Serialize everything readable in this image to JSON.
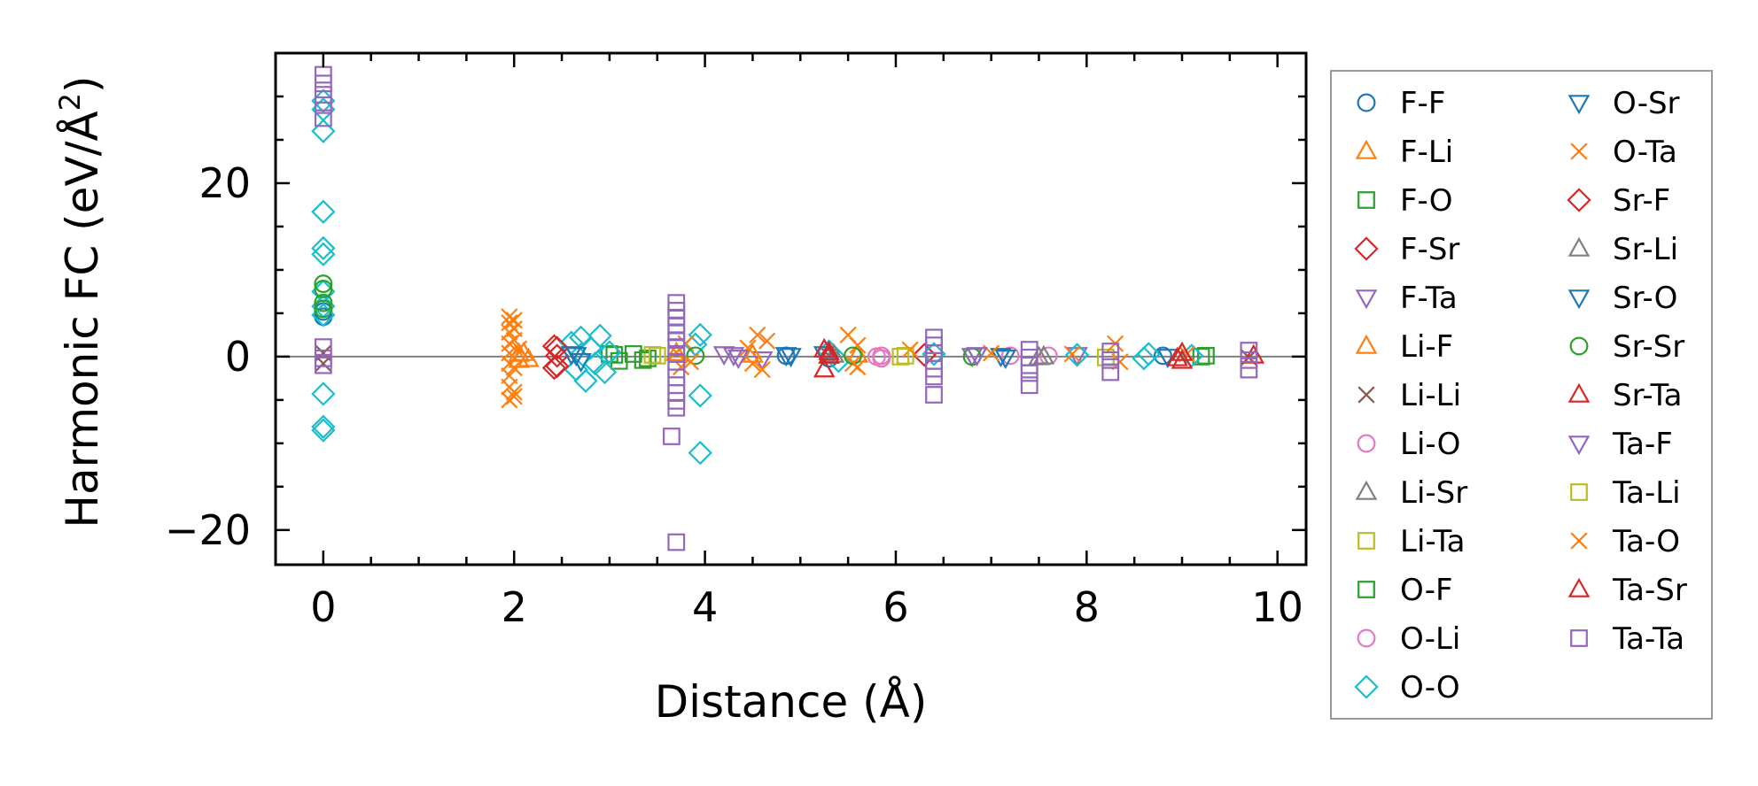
{
  "chart_data": {
    "type": "scatter",
    "xlabel": "Distance (Å)",
    "ylabel_main": "Harmonic FC (eV/Å",
    "ylabel_sup": "2",
    "ylabel_close": ")",
    "xlim": [
      -0.5,
      10.3
    ],
    "ylim": [
      -24,
      35
    ],
    "xticks": [
      0,
      2,
      4,
      6,
      8,
      10
    ],
    "xtick_labels": [
      "0",
      "2",
      "4",
      "6",
      "8",
      "10"
    ],
    "yticks": [
      -20,
      0,
      20
    ],
    "ytick_labels": [
      "−20",
      "0",
      "20"
    ],
    "reference_line_y": 0,
    "legend_position": "outside-right",
    "series": [
      {
        "name": "F-F",
        "marker": "circle",
        "color": "#1f77b4",
        "points": [
          [
            0,
            5.2
          ],
          [
            0,
            4.6
          ],
          [
            4.85,
            0.1
          ],
          [
            5.3,
            -0.2
          ],
          [
            8.8,
            0.1
          ]
        ]
      },
      {
        "name": "F-Li",
        "marker": "triangle-up",
        "color": "#ff7f0e",
        "points": [
          [
            2.05,
            0.3
          ],
          [
            2.05,
            -0.4
          ],
          [
            3.7,
            0.4
          ],
          [
            5.6,
            0.2
          ]
        ]
      },
      {
        "name": "F-O",
        "marker": "square",
        "color": "#2ca02c",
        "points": [
          [
            3.05,
            0.2
          ],
          [
            3.1,
            -0.5
          ],
          [
            3.25,
            0.3
          ],
          [
            3.4,
            -0.2
          ],
          [
            9.25,
            0.1
          ]
        ]
      },
      {
        "name": "F-Sr",
        "marker": "diamond",
        "color": "#d62728",
        "points": [
          [
            2.42,
            1.2
          ],
          [
            2.42,
            -1.3
          ],
          [
            2.45,
            0.1
          ],
          [
            6.3,
            0.2
          ]
        ]
      },
      {
        "name": "F-Ta",
        "marker": "triangle-down",
        "color": "#9467bd",
        "points": [
          [
            4.3,
            0.2
          ],
          [
            4.6,
            -0.3
          ],
          [
            6.8,
            0.1
          ],
          [
            7.9,
            0.2
          ]
        ]
      },
      {
        "name": "Li-F",
        "marker": "triangle-up",
        "color": "#ff7f0e",
        "points": [
          [
            2.1,
            0.4
          ],
          [
            2.15,
            -0.3
          ],
          [
            4.5,
            0.2
          ]
        ]
      },
      {
        "name": "Li-Li",
        "marker": "x",
        "color": "#8c564b",
        "points": [
          [
            0,
            -0.8
          ],
          [
            0,
            0.4
          ],
          [
            5.3,
            0.1
          ],
          [
            9.7,
            -0.1
          ]
        ]
      },
      {
        "name": "Li-O",
        "marker": "circle",
        "color": "#e377c2",
        "points": [
          [
            5.85,
            0.1
          ],
          [
            5.85,
            -0.2
          ],
          [
            7.2,
            0.1
          ]
        ]
      },
      {
        "name": "Li-Sr",
        "marker": "triangle-up",
        "color": "#7f7f7f",
        "points": [
          [
            5.3,
            0.1
          ],
          [
            7.5,
            -0.1
          ]
        ]
      },
      {
        "name": "Li-Ta",
        "marker": "square",
        "color": "#bcbd22",
        "points": [
          [
            3.45,
            0.2
          ],
          [
            6.1,
            0.1
          ],
          [
            8.2,
            -0.1
          ]
        ]
      },
      {
        "name": "O-F",
        "marker": "square",
        "color": "#2ca02c",
        "points": [
          [
            3.0,
            0.3
          ],
          [
            3.35,
            -0.4
          ],
          [
            9.2,
            0.0
          ]
        ]
      },
      {
        "name": "O-Li",
        "marker": "circle",
        "color": "#e377c2",
        "points": [
          [
            5.8,
            0.0
          ],
          [
            7.6,
            0.1
          ]
        ]
      },
      {
        "name": "O-O",
        "marker": "diamond",
        "color": "#17becf",
        "points": [
          [
            0,
            29.5
          ],
          [
            0,
            28.5
          ],
          [
            0,
            26
          ],
          [
            0,
            16.7
          ],
          [
            0,
            12.5
          ],
          [
            0,
            11.8
          ],
          [
            0,
            7.5
          ],
          [
            0,
            5.8
          ],
          [
            0,
            4.8
          ],
          [
            0,
            -4.3
          ],
          [
            0,
            -8.1
          ],
          [
            0,
            -8.5
          ],
          [
            2.6,
            1.6
          ],
          [
            2.65,
            -1.5
          ],
          [
            2.7,
            2.2
          ],
          [
            2.75,
            -2.8
          ],
          [
            2.8,
            1.0
          ],
          [
            2.85,
            -0.8
          ],
          [
            2.9,
            2.4
          ],
          [
            2.95,
            -1.8
          ],
          [
            3.0,
            0.5
          ],
          [
            3.95,
            2.5
          ],
          [
            3.95,
            -4.5
          ],
          [
            3.95,
            -11.1
          ],
          [
            3.9,
            1.4
          ],
          [
            5.3,
            0.6
          ],
          [
            5.4,
            -0.5
          ],
          [
            6.4,
            0.3
          ],
          [
            7.9,
            0.2
          ],
          [
            8.6,
            -0.2
          ],
          [
            8.65,
            0.3
          ],
          [
            9.1,
            0.1
          ]
        ]
      },
      {
        "name": "O-Sr",
        "marker": "triangle-down",
        "color": "#1f77b4",
        "points": [
          [
            2.6,
            0.3
          ],
          [
            2.7,
            -0.5
          ],
          [
            4.85,
            0.2
          ],
          [
            5.25,
            0.3
          ],
          [
            7.1,
            0.1
          ],
          [
            8.85,
            0.0
          ]
        ]
      },
      {
        "name": "O-Ta",
        "marker": "x",
        "color": "#ff7f0e",
        "points": [
          [
            1.95,
            4.6
          ],
          [
            1.95,
            3.9
          ],
          [
            1.95,
            2.8
          ],
          [
            1.95,
            1.5
          ],
          [
            1.95,
            0.4
          ],
          [
            1.95,
            -0.8
          ],
          [
            1.95,
            -2.2
          ],
          [
            1.95,
            -3.5
          ],
          [
            1.95,
            -5.0
          ],
          [
            2.0,
            3.2
          ],
          [
            2.0,
            -4.1
          ],
          [
            2.0,
            1.9
          ],
          [
            2.0,
            -1.3
          ],
          [
            3.7,
            0.5
          ],
          [
            3.75,
            -1.2
          ],
          [
            3.8,
            1.5
          ],
          [
            4.45,
            1.0
          ],
          [
            4.5,
            -0.8
          ],
          [
            4.55,
            2.5
          ],
          [
            4.6,
            -1.5
          ],
          [
            5.5,
            2.5
          ],
          [
            5.55,
            -0.8
          ],
          [
            5.6,
            1.3
          ],
          [
            6.15,
            0.8
          ],
          [
            7.0,
            0.4
          ],
          [
            7.85,
            0.3
          ],
          [
            8.3,
            1.5
          ],
          [
            8.35,
            -0.6
          ],
          [
            9.05,
            0.3
          ]
        ]
      },
      {
        "name": "Sr-F",
        "marker": "diamond",
        "color": "#d62728",
        "points": [
          [
            2.45,
            1.0
          ],
          [
            2.45,
            -1.1
          ]
        ]
      },
      {
        "name": "Sr-Li",
        "marker": "triangle-up",
        "color": "#7f7f7f",
        "points": [
          [
            5.35,
            0.2
          ],
          [
            7.55,
            0.0
          ]
        ]
      },
      {
        "name": "Sr-O",
        "marker": "triangle-down",
        "color": "#1f77b4",
        "points": [
          [
            2.65,
            0.2
          ],
          [
            4.9,
            0.1
          ],
          [
            7.15,
            -0.1
          ]
        ]
      },
      {
        "name": "Sr-Sr",
        "marker": "circle",
        "color": "#2ca02c",
        "points": [
          [
            0,
            8.4
          ],
          [
            0,
            7.8
          ],
          [
            0,
            6.2
          ],
          [
            0,
            5.5
          ],
          [
            3.9,
            0.1
          ],
          [
            5.55,
            0.1
          ],
          [
            6.8,
            0.0
          ]
        ]
      },
      {
        "name": "Sr-Ta",
        "marker": "triangle-up",
        "color": "#d62728",
        "points": [
          [
            5.25,
            0.8
          ],
          [
            5.25,
            -1.5
          ],
          [
            5.3,
            0.1
          ],
          [
            9.0,
            0.4
          ],
          [
            9.0,
            -0.5
          ],
          [
            9.75,
            0.1
          ]
        ]
      },
      {
        "name": "Ta-F",
        "marker": "triangle-down",
        "color": "#9467bd",
        "points": [
          [
            4.2,
            0.3
          ],
          [
            4.35,
            -0.1
          ],
          [
            6.85,
            0.2
          ]
        ]
      },
      {
        "name": "Ta-Li",
        "marker": "square",
        "color": "#bcbd22",
        "points": [
          [
            3.5,
            0.1
          ],
          [
            6.05,
            0.0
          ]
        ]
      },
      {
        "name": "Ta-O",
        "marker": "x",
        "color": "#ff7f0e",
        "points": [
          [
            2.0,
            4.2
          ],
          [
            2.0,
            -4.6
          ],
          [
            2.05,
            0.9
          ],
          [
            3.85,
            -0.6
          ],
          [
            4.65,
            1.8
          ],
          [
            5.6,
            -1.2
          ]
        ]
      },
      {
        "name": "Ta-Sr",
        "marker": "triangle-up",
        "color": "#d62728",
        "points": [
          [
            5.3,
            0.5
          ],
          [
            8.95,
            -0.2
          ]
        ]
      },
      {
        "name": "Ta-Ta",
        "marker": "square",
        "color": "#9467bd",
        "points": [
          [
            0,
            32.5
          ],
          [
            0,
            31.5
          ],
          [
            0,
            30.2
          ],
          [
            0,
            29.0
          ],
          [
            0,
            27.5
          ],
          [
            0,
            1.1
          ],
          [
            0,
            -0.2
          ],
          [
            0,
            -1.0
          ],
          [
            3.7,
            6.2
          ],
          [
            3.7,
            5.3
          ],
          [
            3.7,
            4.5
          ],
          [
            3.7,
            3.6
          ],
          [
            3.7,
            2.8
          ],
          [
            3.7,
            1.9
          ],
          [
            3.7,
            1.1
          ],
          [
            3.7,
            0.3
          ],
          [
            3.7,
            -0.6
          ],
          [
            3.7,
            -1.5
          ],
          [
            3.7,
            -2.4
          ],
          [
            3.7,
            -3.3
          ],
          [
            3.7,
            -4.2
          ],
          [
            3.7,
            -5.1
          ],
          [
            3.7,
            -5.9
          ],
          [
            3.65,
            -9.2
          ],
          [
            3.7,
            -21.4
          ],
          [
            6.4,
            2.2
          ],
          [
            6.4,
            1.3
          ],
          [
            6.4,
            0.4
          ],
          [
            6.4,
            -0.5
          ],
          [
            6.4,
            -1.4
          ],
          [
            6.4,
            -2.3
          ],
          [
            6.4,
            -4.4
          ],
          [
            7.4,
            0.8
          ],
          [
            7.4,
            -0.1
          ],
          [
            7.4,
            -1.0
          ],
          [
            7.4,
            -1.9
          ],
          [
            7.4,
            -3.3
          ],
          [
            8.25,
            0.6
          ],
          [
            8.25,
            -0.4
          ],
          [
            8.25,
            -1.8
          ],
          [
            9.7,
            0.7
          ],
          [
            9.7,
            -0.4
          ],
          [
            9.7,
            -1.5
          ]
        ]
      }
    ]
  }
}
